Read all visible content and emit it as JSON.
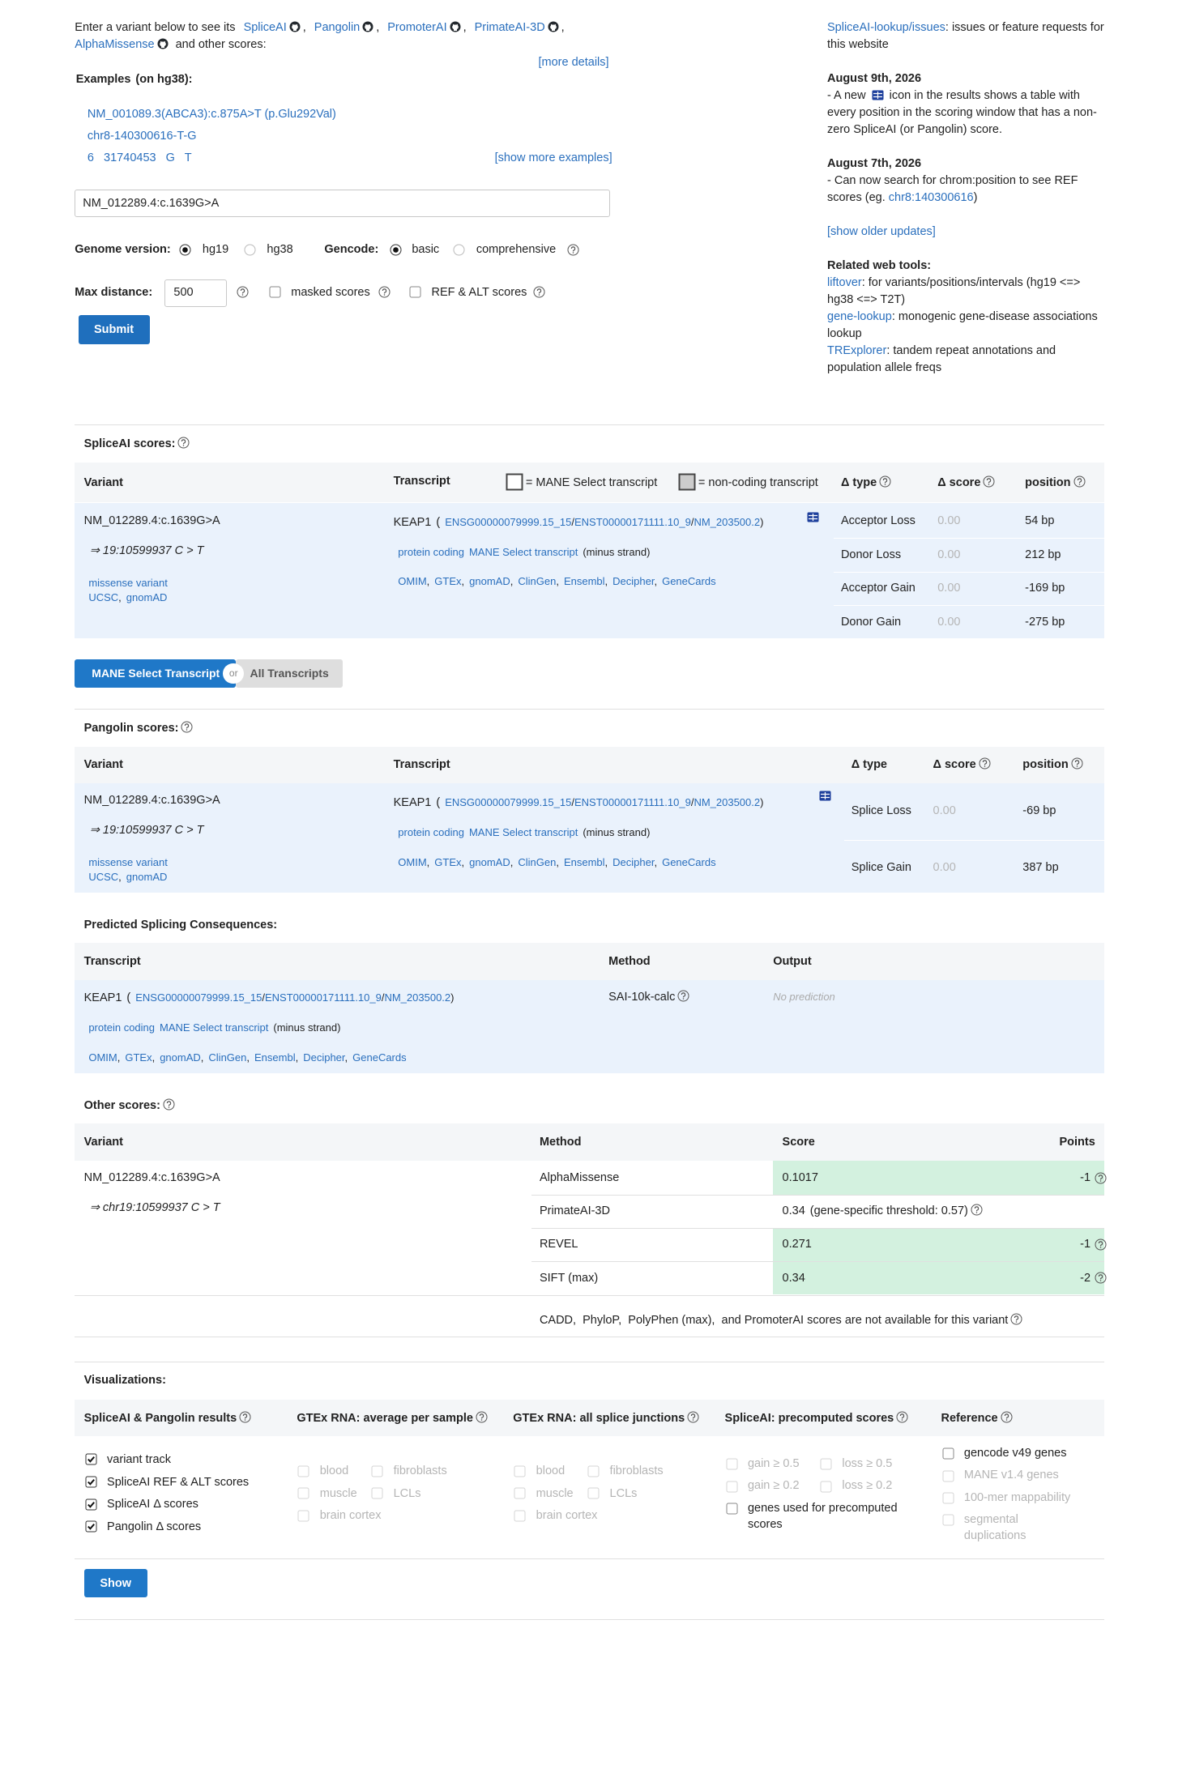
{
  "intro": {
    "lead": "Enter a variant below to see its",
    "tools": [
      "SpliceAI",
      "Pangolin",
      "PromoterAI",
      "PrimateAI-3D",
      "AlphaMissense"
    ],
    "separator": ",",
    "tail": "and other scores:",
    "more_details": "[more details]"
  },
  "examples": {
    "label": "Examples",
    "note": "(on hg38):",
    "items": [
      "NM_001089.3(ABCA3):c.875A>T (p.Glu292Val)",
      "chr8-140300616-T-G",
      "6   31740453   G   T"
    ],
    "show_more": "[show more examples]"
  },
  "form": {
    "variant_input": "NM_012289.4:c.1639G>A",
    "genome_label": "Genome version:",
    "genome_options": [
      "hg19",
      "hg38"
    ],
    "genome_selected": 0,
    "gencode_label": "Gencode:",
    "gencode_options": [
      "basic",
      "comprehensive"
    ],
    "gencode_selected": 0,
    "max_distance_label": "Max distance:",
    "max_distance": "500",
    "masked_scores": "masked scores",
    "ref_alt_scores": "REF & ALT scores",
    "submit": "Submit"
  },
  "news": {
    "issues": {
      "link": "SpliceAI-lookup/issues",
      "text": ": issues or feature requests for this website"
    },
    "update_1": {
      "date": "August 9th, 2026",
      "text_before_icon": "- A new",
      "text_after_icon": "icon in the results shows a table with every position in the scoring window that has a non-zero SpliceAI (or Pangolin) score."
    },
    "update_2": {
      "date": "August 7th, 2026",
      "text": "- Can now search for chrom:position to see REF scores (eg.",
      "link": "chr8:140300616",
      "text_end": ")"
    },
    "older": "[show older updates]",
    "tools_title": "Related web tools:",
    "tools": [
      {
        "name": "liftover",
        "description": ": for variants/positions/intervals (hg19 <=> hg38 <=> T2T)"
      },
      {
        "name": "gene-lookup",
        "description": ": monogenic gene-disease associations lookup"
      },
      {
        "name": "TRExplorer",
        "description": ": tandem repeat annotations and population allele freqs"
      }
    ]
  },
  "spliceai": {
    "title": "SpliceAI scores:",
    "headers": {
      "variant": "Variant",
      "transcript": "Transcript",
      "mane_legend": "= MANE Select transcript",
      "noncoding_legend": "= non-coding transcript",
      "type": "Δ type",
      "score": "Δ score",
      "position": "position"
    },
    "variant": {
      "name": "NM_012289.4:c.1639G>A",
      "coord": "⇒ 19:10599937 C > T",
      "consequence": "missense variant",
      "links": [
        "UCSC",
        "gnomAD"
      ],
      "link_separator": ","
    },
    "transcript": {
      "gene": "KEAP1",
      "open": "(",
      "ids": [
        "ENSG00000079999.15_15",
        "ENST00000171111.10_9",
        "NM_203500.2"
      ],
      "id_separator": "/",
      "close": ")",
      "biotype": "protein coding",
      "tag": "MANE Select transcript",
      "strand": "(minus strand)",
      "links": [
        "OMIM",
        "GTEx",
        "gnomAD",
        "ClinGen",
        "Ensembl",
        "Decipher",
        "GeneCards"
      ],
      "link_separator": ","
    },
    "rows": [
      [
        "Acceptor Loss",
        "0.00",
        "54 bp"
      ],
      [
        "Donor Loss",
        "0.00",
        "212 bp"
      ],
      [
        "Acceptor Gain",
        "0.00",
        "-169 bp"
      ],
      [
        "Donor Gain",
        "0.00",
        "-275 bp"
      ]
    ]
  },
  "toggle": {
    "mane": "MANE Select Transcript",
    "or": "or",
    "all": "All Transcripts"
  },
  "pangolin": {
    "title": "Pangolin scores:",
    "headers": {
      "variant": "Variant",
      "transcript": "Transcript",
      "type": "Δ type",
      "score": "Δ score",
      "position": "position"
    },
    "variant": {
      "name": "NM_012289.4:c.1639G>A",
      "coord": "⇒ 19:10599937 C > T",
      "consequence": "missense variant",
      "links": [
        "UCSC",
        "gnomAD"
      ],
      "link_separator": ","
    },
    "transcript": {
      "gene": "KEAP1",
      "open": "(",
      "ids": [
        "ENSG00000079999.15_15",
        "ENST00000171111.10_9",
        "NM_203500.2"
      ],
      "id_separator": "/",
      "close": ")",
      "biotype": "protein coding",
      "tag": "MANE Select transcript",
      "strand": "(minus strand)",
      "links": [
        "OMIM",
        "GTEx",
        "gnomAD",
        "ClinGen",
        "Ensembl",
        "Decipher",
        "GeneCards"
      ],
      "link_separator": ","
    },
    "rows": [
      [
        "Splice Loss",
        "0.00",
        "-69 bp"
      ],
      [
        "Splice Gain",
        "0.00",
        "387 bp"
      ]
    ]
  },
  "consequences": {
    "title": "Predicted Splicing Consequences:",
    "headers": {
      "transcript": "Transcript",
      "method": "Method",
      "output": "Output"
    },
    "transcript": {
      "gene": "KEAP1",
      "open": "(",
      "ids": [
        "ENSG00000079999.15_15",
        "ENST00000171111.10_9",
        "NM_203500.2"
      ],
      "id_separator": "/",
      "close": ")",
      "biotype": "protein coding",
      "tag": "MANE Select transcript",
      "strand": "(minus strand)",
      "links": [
        "OMIM",
        "GTEx",
        "gnomAD",
        "ClinGen",
        "Ensembl",
        "Decipher",
        "GeneCards"
      ],
      "link_separator": ","
    },
    "method": "SAI-10k-calc",
    "output": "No prediction"
  },
  "other_scores": {
    "title": "Other scores:",
    "headers": {
      "variant": "Variant",
      "method": "Method",
      "score": "Score",
      "points": "Points"
    },
    "variant": {
      "name": "NM_012289.4:c.1639G>A",
      "coord": "⇒ chr19:10599937 C > T"
    },
    "rows": [
      {
        "method": "AlphaMissense",
        "score": "0.1017",
        "points": "-1"
      },
      {
        "method": "PrimateAI-3D",
        "score": "0.34",
        "note": "(gene-specific threshold: 0.57)"
      },
      {
        "method": "REVEL",
        "score": "0.271",
        "points": "-1"
      },
      {
        "method": "SIFT (max)",
        "score": "0.34",
        "points": "-2"
      }
    ],
    "footer": "CADD,  PhyloP,  PolyPhen (max),  and PromoterAI scores are not available for this variant"
  },
  "visualizations": {
    "title": "Visualizations:",
    "columns": [
      {
        "title": "SpliceAI & Pangolin results",
        "items": [
          {
            "label": "variant track",
            "checked": true
          },
          {
            "label": "SpliceAI REF & ALT scores",
            "checked": true
          },
          {
            "label": "SpliceAI Δ scores",
            "checked": true
          },
          {
            "label": "Pangolin Δ scores",
            "checked": true
          }
        ]
      },
      {
        "title": "GTEx RNA: average per sample",
        "items": [
          {
            "label": "blood",
            "disabled": true
          },
          {
            "label": "fibroblasts",
            "disabled": true
          },
          {
            "label": "muscle",
            "disabled": true
          },
          {
            "label": "LCLs",
            "disabled": true
          },
          {
            "label": "brain cortex",
            "disabled": true
          }
        ]
      },
      {
        "title": "GTEx RNA: all splice junctions",
        "items": [
          {
            "label": "blood",
            "disabled": true
          },
          {
            "label": "fibroblasts",
            "disabled": true
          },
          {
            "label": "muscle",
            "disabled": true
          },
          {
            "label": "LCLs",
            "disabled": true
          },
          {
            "label": "brain cortex",
            "disabled": true
          }
        ]
      },
      {
        "title": "SpliceAI: precomputed scores",
        "items": [
          {
            "label": "gain ≥ 0.5",
            "disabled": true
          },
          {
            "label": "loss ≥ 0.5",
            "disabled": true
          },
          {
            "label": "gain ≥ 0.2",
            "disabled": true
          },
          {
            "label": "loss ≥ 0.2",
            "disabled": true
          },
          {
            "label": "genes used for precomputed scores"
          }
        ]
      },
      {
        "title": "Reference",
        "items": [
          {
            "label": "gencode v49 genes"
          },
          {
            "label": "MANE v1.4 genes",
            "disabled": true
          },
          {
            "label": "100-mer mappability",
            "disabled": true
          },
          {
            "label": "segmental duplications",
            "disabled": true
          }
        ]
      }
    ],
    "show": "Show"
  }
}
